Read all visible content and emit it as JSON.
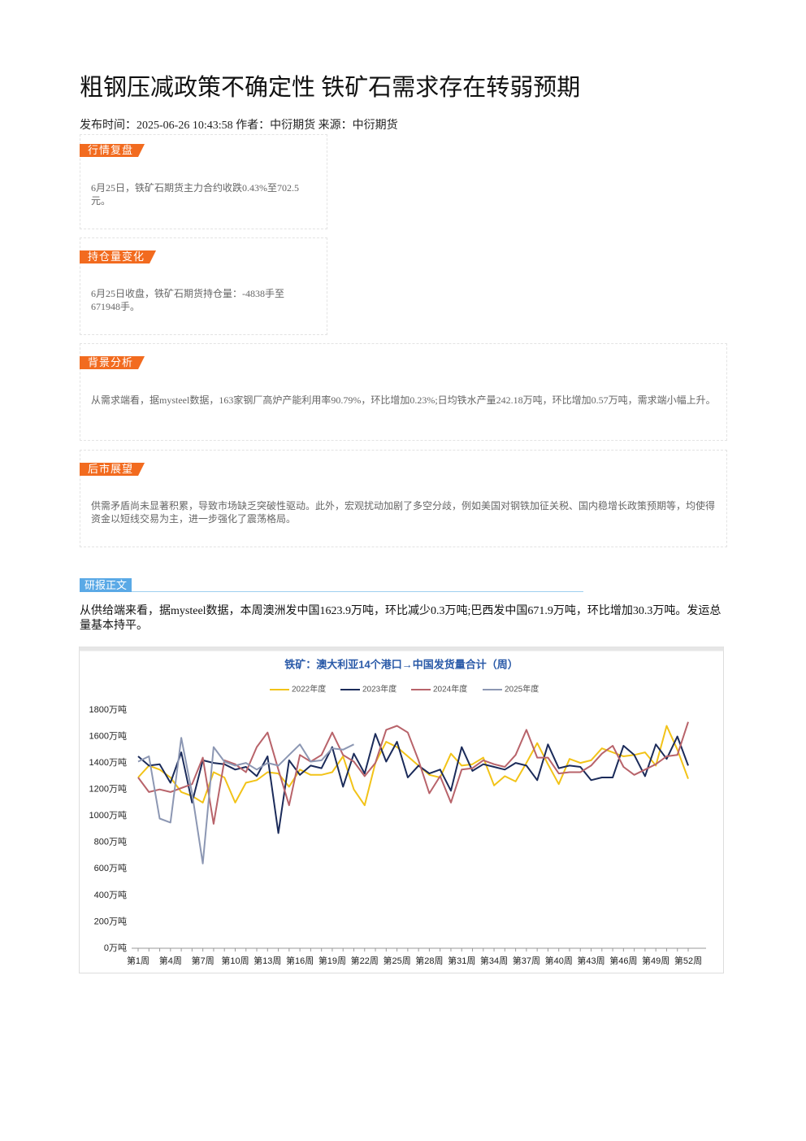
{
  "header": {
    "title": "粗钢压减政策不确定性 铁矿石需求存在转弱预期",
    "meta": "发布时间：2025-06-26 10:43:58 作者：中衍期货 来源：中衍期货"
  },
  "sections": [
    {
      "heading": "行情复盘",
      "text": "6月25日，铁矿石期货主力合约收跌0.43%至702.5元。"
    },
    {
      "heading": "持仓量变化",
      "text": "6月25日收盘，铁矿石期货持仓量：-4838手至671948手。"
    },
    {
      "heading": "背景分析",
      "text": "从需求端看，据mysteel数据，163家钢厂高炉产能利用率90.79%，环比增加0.23%;日均铁水产量242.18万吨，环比增加0.57万吨，需求端小幅上升。"
    },
    {
      "heading": "后市展望",
      "text": "供需矛盾尚未显著积累，导致市场缺乏突破性驱动。此外，宏观扰动加剧了多空分歧，例如美国对钢铁加征关税、国内稳增长政策预期等，均使得资金以短线交易为主，进一步强化了震荡格局。"
    }
  ],
  "report": {
    "heading": "研报正文",
    "text": "从供给端来看，据mysteel数据，本周澳洲发中国1623.9万吨，环比减少0.3万吨;巴西发中国671.9万吨，环比增加30.3万吨。发运总量基本持平。"
  },
  "chart_data": {
    "type": "line",
    "title": "铁矿：澳大利亚14个港口→中国发货量合计（周）",
    "categories": [
      "第1周",
      null,
      null,
      "第4周",
      null,
      null,
      "第7周",
      null,
      null,
      "第10周",
      null,
      null,
      "第13周",
      null,
      null,
      "第16周",
      null,
      null,
      "第19周",
      null,
      null,
      "第22周",
      null,
      null,
      "第25周",
      null,
      null,
      "第28周",
      null,
      null,
      "第31周",
      null,
      null,
      "第34周",
      null,
      null,
      "第37周",
      null,
      null,
      "第40周",
      null,
      null,
      "第43周",
      null,
      null,
      "第46周",
      null,
      null,
      "第49周",
      null,
      null,
      "第52周"
    ],
    "series": [
      {
        "name": "2022年度",
        "color": "#f2c318",
        "values": [
          1290,
          1380,
          1350,
          1290,
          1180,
          1150,
          1100,
          1330,
          1290,
          1100,
          1250,
          1270,
          1330,
          1320,
          1220,
          1350,
          1310,
          1310,
          1330,
          1450,
          1200,
          1080,
          1400,
          1560,
          1520,
          1450,
          1380,
          1310,
          1290,
          1470,
          1380,
          1390,
          1440,
          1230,
          1300,
          1260,
          1400,
          1550,
          1390,
          1240,
          1430,
          1400,
          1420,
          1510,
          1480,
          1450,
          1460,
          1480,
          1380,
          1680,
          1500,
          1280
        ]
      },
      {
        "name": "2023年度",
        "color": "#1b2b5a",
        "values": [
          1450,
          1380,
          1390,
          1250,
          1480,
          1100,
          1420,
          1400,
          1390,
          1350,
          1370,
          1300,
          1450,
          870,
          1420,
          1310,
          1380,
          1360,
          1520,
          1220,
          1470,
          1320,
          1620,
          1410,
          1560,
          1290,
          1380,
          1320,
          1350,
          1190,
          1520,
          1340,
          1390,
          1370,
          1350,
          1400,
          1380,
          1270,
          1540,
          1360,
          1380,
          1370,
          1270,
          1290,
          1290,
          1530,
          1460,
          1300,
          1540,
          1430,
          1600,
          1380
        ]
      },
      {
        "name": "2024年度",
        "color": "#b8636a",
        "values": [
          1290,
          1180,
          1200,
          1180,
          1210,
          1240,
          1440,
          940,
          1420,
          1390,
          1330,
          1520,
          1630,
          1350,
          1080,
          1460,
          1410,
          1460,
          1630,
          1460,
          1410,
          1300,
          1400,
          1650,
          1680,
          1630,
          1420,
          1170,
          1300,
          1100,
          1350,
          1360,
          1420,
          1390,
          1370,
          1460,
          1650,
          1440,
          1440,
          1320,
          1330,
          1330,
          1380,
          1470,
          1530,
          1370,
          1310,
          1350,
          1390,
          1450,
          1460,
          1710
        ]
      },
      {
        "name": "2025年度",
        "color": "#8c97b3",
        "values": [
          1410,
          1450,
          980,
          950,
          1590,
          1170,
          640,
          1520,
          1410,
          1380,
          1400,
          1350,
          1400,
          1380,
          1460,
          1540,
          1410,
          1420,
          1510,
          1500,
          1540,
          null,
          null,
          null,
          null,
          null,
          null,
          null,
          null,
          null,
          null,
          null,
          null,
          null,
          null,
          null,
          null,
          null,
          null,
          null,
          null,
          null,
          null,
          null,
          null,
          null,
          null,
          null,
          null,
          null,
          null,
          null
        ]
      }
    ],
    "ylim": [
      0,
      1800
    ],
    "yticks": [
      {
        "value": 0,
        "label": "0万吨"
      },
      {
        "value": 200,
        "label": "200万吨"
      },
      {
        "value": 400,
        "label": "400万吨"
      },
      {
        "value": 600,
        "label": "600万吨"
      },
      {
        "value": 800,
        "label": "800万吨"
      },
      {
        "value": 1000,
        "label": "1000万吨"
      },
      {
        "value": 1200,
        "label": "1200万吨"
      },
      {
        "value": 1400,
        "label": "1400万吨"
      },
      {
        "value": 1600,
        "label": "1600万吨"
      },
      {
        "value": 1800,
        "label": "1800万吨"
      }
    ],
    "grid": false,
    "legend": "top"
  }
}
